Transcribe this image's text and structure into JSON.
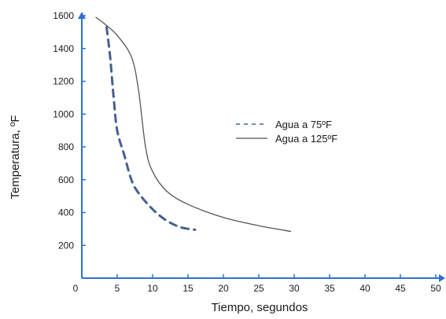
{
  "chart_data": {
    "type": "line",
    "xlabel": "Tiempo, segundos",
    "ylabel": "Temperatura, ºF",
    "xlim": [
      0,
      50
    ],
    "ylim": [
      0,
      1600
    ],
    "x_ticks": [
      0,
      5,
      10,
      15,
      20,
      25,
      30,
      35,
      40,
      45,
      50
    ],
    "y_ticks": [
      200,
      400,
      600,
      800,
      1000,
      1200,
      1400,
      1600
    ],
    "grid": false,
    "legend_position": "center-right",
    "axis_color": "#2f6fd6",
    "series": [
      {
        "name": "Agua a 75ºF",
        "style": "dashed",
        "color": "#46608f",
        "points": [
          [
            3.5,
            1530
          ],
          [
            4,
            1350
          ],
          [
            4.5,
            1100
          ],
          [
            5,
            900
          ],
          [
            6,
            750
          ],
          [
            7,
            600
          ],
          [
            8,
            520
          ],
          [
            10,
            420
          ],
          [
            12,
            350
          ],
          [
            14,
            310
          ],
          [
            16,
            295
          ]
        ]
      },
      {
        "name": "Agua a 125ºF",
        "style": "solid",
        "color": "#555555",
        "points": [
          [
            2,
            1590
          ],
          [
            3.5,
            1540
          ],
          [
            5,
            1480
          ],
          [
            7,
            1350
          ],
          [
            8,
            1150
          ],
          [
            9,
            800
          ],
          [
            10,
            650
          ],
          [
            12,
            530
          ],
          [
            15,
            450
          ],
          [
            20,
            370
          ],
          [
            25,
            320
          ],
          [
            29.5,
            285
          ]
        ]
      }
    ]
  }
}
